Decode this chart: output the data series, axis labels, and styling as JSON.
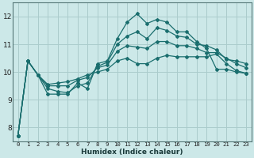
{
  "xlabel": "Humidex (Indice chaleur)",
  "background_color": "#cce8e8",
  "grid_color": "#aacccc",
  "line_color": "#1a6e6e",
  "x_values": [
    0,
    1,
    2,
    3,
    4,
    5,
    6,
    7,
    8,
    9,
    10,
    11,
    12,
    13,
    14,
    15,
    16,
    17,
    18,
    19,
    20,
    21,
    22,
    23
  ],
  "series": [
    [
      7.7,
      10.4,
      9.9,
      9.2,
      9.2,
      9.2,
      9.6,
      9.4,
      10.3,
      10.4,
      11.2,
      11.8,
      12.1,
      11.75,
      11.9,
      11.8,
      11.45,
      11.45,
      11.1,
      10.85,
      10.1,
      10.1,
      10.0,
      9.95
    ],
    [
      7.7,
      10.4,
      9.9,
      9.4,
      9.3,
      9.25,
      9.5,
      9.6,
      10.2,
      10.35,
      11.0,
      11.3,
      11.45,
      11.2,
      11.6,
      11.5,
      11.3,
      11.25,
      11.0,
      10.95,
      10.8,
      10.45,
      10.4,
      10.3
    ],
    [
      7.7,
      10.4,
      9.9,
      9.5,
      9.5,
      9.5,
      9.7,
      9.8,
      10.15,
      10.25,
      10.75,
      10.95,
      10.9,
      10.85,
      11.1,
      11.1,
      10.95,
      10.95,
      10.85,
      10.7,
      10.7,
      10.5,
      10.3,
      10.15
    ],
    [
      7.7,
      10.4,
      9.9,
      9.55,
      9.6,
      9.65,
      9.75,
      9.9,
      10.0,
      10.1,
      10.4,
      10.5,
      10.3,
      10.3,
      10.5,
      10.6,
      10.55,
      10.55,
      10.55,
      10.55,
      10.65,
      10.3,
      10.05,
      9.95
    ]
  ],
  "ylim": [
    7.5,
    12.5
  ],
  "yticks": [
    8,
    9,
    10,
    11,
    12
  ],
  "xlim": [
    -0.5,
    23.5
  ],
  "xticks": [
    0,
    1,
    2,
    3,
    4,
    5,
    6,
    7,
    8,
    9,
    10,
    11,
    12,
    13,
    14,
    15,
    16,
    17,
    18,
    19,
    20,
    21,
    22,
    23
  ]
}
